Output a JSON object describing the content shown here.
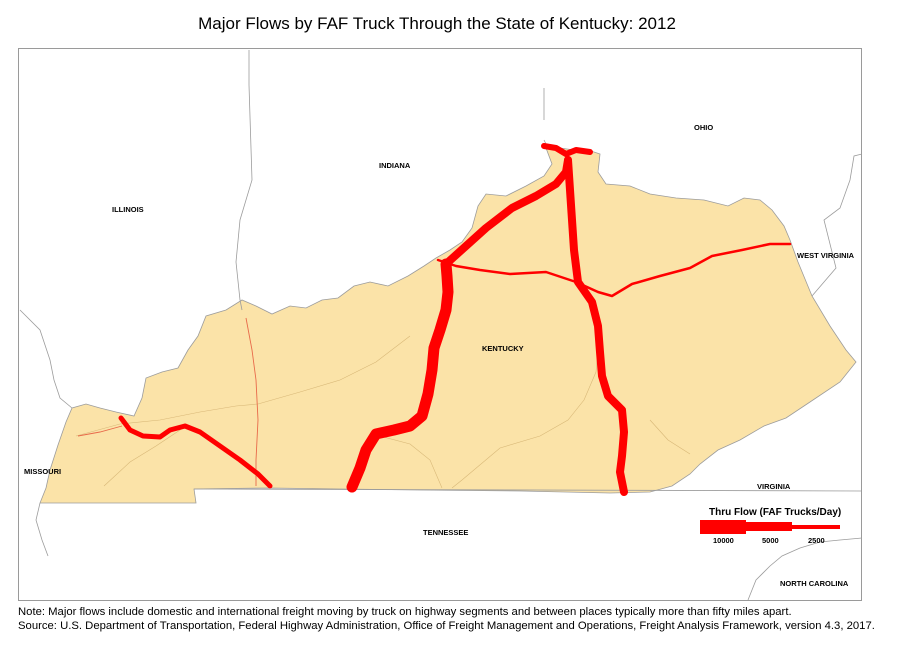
{
  "title": "Major Flows by FAF Truck Through the State of  Kentucky: 2012",
  "labels": {
    "ohio": "OHIO",
    "indiana": "INDIANA",
    "illinois": "ILLINOIS",
    "west_virginia": "WEST VIRGINIA",
    "kentucky": "KENTUCKY",
    "missouri": "MISSOURI",
    "virginia": "VIRGINIA",
    "tennessee": "TENNESSEE",
    "north_carolina": "NORTH CAROLINA"
  },
  "legend": {
    "title": "Thru Flow (FAF Trucks/Day)",
    "values": [
      "10000",
      "5000",
      "2500"
    ]
  },
  "colors": {
    "state_fill": "#fbe3a8",
    "flow": "#ff0000",
    "border": "#8c8c8c"
  },
  "footnotes": {
    "note": "Note: Major flows include domestic and international freight moving by truck on highway segments and between places typically more than fifty miles apart.",
    "source": "Source:  U.S. Department of Transportation, Federal Highway Administration, Office of Freight Management and Operations, Freight Analysis Framework, version 4.3, 2017."
  }
}
